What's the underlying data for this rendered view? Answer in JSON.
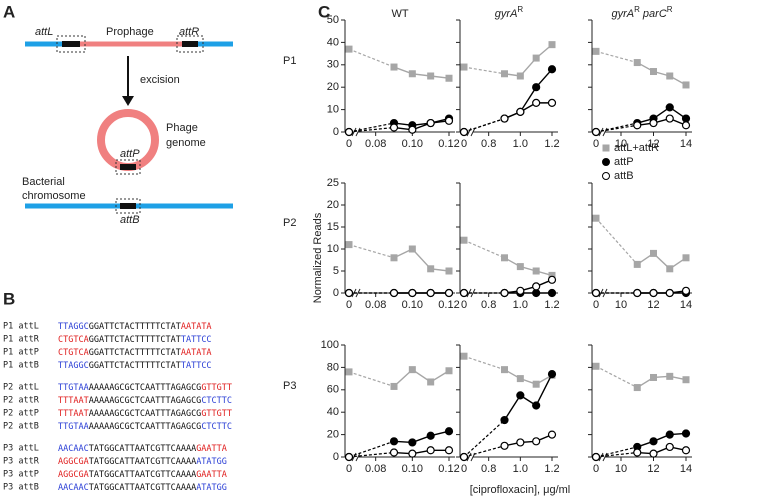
{
  "panel_labels": [
    "A",
    "B",
    "C"
  ],
  "diagram": {
    "attL": "attL",
    "prophage": "Prophage",
    "attR": "attR",
    "excision": "excision",
    "phage": "Phage",
    "genome": "genome",
    "attP": "attP",
    "bacterial": "Bacterial",
    "chromosome": "chromosome",
    "attB": "attB"
  },
  "sequences": [
    {
      "label": "P1 attL",
      "left": "TTAGGC",
      "core": "GGATTCTACTTTTTCTAT",
      "right": "AATATA",
      "left_color": "#2b3fd6",
      "right_color": "#e02020"
    },
    {
      "label": "P1 attR",
      "left": "CTGTCA",
      "core": "GGATTCTACTTTTTCTAT",
      "right": "TATTCC",
      "left_color": "#e02020",
      "right_color": "#2b3fd6"
    },
    {
      "label": "P1 attP",
      "left": "CTGTCA",
      "core": "GGATTCTACTTTTTCTAT",
      "right": "AATATA",
      "left_color": "#e02020",
      "right_color": "#e02020"
    },
    {
      "label": "P1 attB",
      "left": "TTAGGC",
      "core": "GGATTCTACTTTTTCTAT",
      "right": "TATTCC",
      "left_color": "#2b3fd6",
      "right_color": "#2b3fd6"
    },
    {
      "label": "P2 attL",
      "left": "TTGTAA",
      "core": "AAAAAGCGCTCAATTTAGAGCG",
      "right": "GTTGTT",
      "left_color": "#2b3fd6",
      "right_color": "#e02020"
    },
    {
      "label": "P2 attR",
      "left": "TTTAAT",
      "core": "AAAAAGCGCTCAATTTAGAGCG",
      "right": "CTCTTC",
      "left_color": "#e02020",
      "right_color": "#2b3fd6"
    },
    {
      "label": "P2 attP",
      "left": "TTTAAT",
      "core": "AAAAAGCGCTCAATTTAGAGCG",
      "right": "GTTGTT",
      "left_color": "#e02020",
      "right_color": "#e02020"
    },
    {
      "label": "P2 attB",
      "left": "TTGTAA",
      "core": "AAAAAGCGCTCAATTTAGAGCG",
      "right": "CTCTTC",
      "left_color": "#2b3fd6",
      "right_color": "#2b3fd6"
    },
    {
      "label": "P3 attL",
      "left": "AACAAC",
      "core": "TATGGCATTAATCGTTCAAAA",
      "right": "GAATTA",
      "left_color": "#2b3fd6",
      "right_color": "#e02020"
    },
    {
      "label": "P3 attR",
      "left": "AGGCGA",
      "core": "TATGGCATTAATCGTTCAAAA",
      "right": "ATATGG",
      "left_color": "#e02020",
      "right_color": "#2b3fd6"
    },
    {
      "label": "P3 attP",
      "left": "AGGCGA",
      "core": "TATGGCATTAATCGTTCAAAA",
      "right": "GAATTA",
      "left_color": "#e02020",
      "right_color": "#e02020"
    },
    {
      "label": "P3 attB",
      "left": "AACAAC",
      "core": "TATGGCATTAATCGTTCAAAA",
      "right": "ATATGG",
      "left_color": "#2b3fd6",
      "right_color": "#2b3fd6"
    }
  ],
  "column_headers": [
    [
      "WT"
    ],
    [
      "gyrA",
      "R"
    ],
    [
      "gyrA",
      "R",
      " parC",
      "R"
    ]
  ],
  "row_labels": [
    "P1",
    "P2",
    "P3"
  ],
  "y_axis_label": "Normalized Reads",
  "x_axis_label": "[ciprofloxacin], μg/ml",
  "chart_data": [
    {
      "type": "line",
      "x": [
        0,
        0.09,
        0.1,
        0.11,
        0.12
      ],
      "xlim": [
        0,
        0.12
      ],
      "xticks": [
        0,
        0.08,
        {
          "value": 0.1,
          "label": "0.10"
        },
        0.12
      ],
      "ylim": [
        0,
        50
      ],
      "yticks": [
        0,
        10,
        20,
        30,
        40,
        50
      ],
      "ytick_labels": true,
      "series": [
        {
          "name": "attL+attR",
          "color": "#a6a6a6",
          "marker": "square",
          "values": [
            37,
            29,
            26,
            25,
            24
          ]
        },
        {
          "name": "attP",
          "color": "#000000",
          "marker": "circle",
          "values": [
            0,
            4,
            3,
            4,
            6
          ]
        },
        {
          "name": "attB",
          "color": "#000000",
          "marker": "open-circle",
          "values": [
            0,
            2,
            1,
            4,
            5
          ]
        }
      ]
    },
    {
      "type": "line",
      "x": [
        0,
        0.9,
        1,
        1.1,
        1.2
      ],
      "xlim": [
        0,
        1.2
      ],
      "xticks": [
        0,
        0.8,
        {
          "value": 1,
          "label": "1.0"
        },
        1.2
      ],
      "ylim": [
        0,
        50
      ],
      "yticks": [
        0,
        10,
        20,
        30,
        40,
        50
      ],
      "ytick_labels": false,
      "series": [
        {
          "name": "attL+attR",
          "color": "#a6a6a6",
          "marker": "square",
          "values": [
            29,
            26,
            25,
            33,
            39
          ]
        },
        {
          "name": "attP",
          "color": "#000000",
          "marker": "circle",
          "values": [
            0,
            6,
            9,
            20,
            28
          ]
        },
        {
          "name": "attB",
          "color": "#000000",
          "marker": "open-circle",
          "values": [
            0,
            6,
            9,
            13,
            13
          ]
        }
      ]
    },
    {
      "type": "line",
      "x": [
        0,
        11,
        12,
        13,
        14
      ],
      "xlim": [
        0,
        14
      ],
      "xticks": [
        0,
        10,
        12,
        14
      ],
      "ylim": [
        0,
        50
      ],
      "yticks": [
        0,
        10,
        20,
        30,
        40,
        50
      ],
      "ytick_labels": false,
      "legend": true,
      "series": [
        {
          "name": "attL+attR",
          "color": "#a6a6a6",
          "marker": "square",
          "values": [
            36,
            31,
            27,
            25,
            21
          ]
        },
        {
          "name": "attP",
          "color": "#000000",
          "marker": "circle",
          "values": [
            0,
            4,
            6,
            11,
            6
          ]
        },
        {
          "name": "attB",
          "color": "#000000",
          "marker": "open-circle",
          "values": [
            0,
            3,
            4,
            6,
            3
          ]
        }
      ]
    },
    {
      "type": "line",
      "x": [
        0,
        0.09,
        0.1,
        0.11,
        0.12
      ],
      "xlim": [
        0,
        0.12
      ],
      "xticks": [
        0,
        0.08,
        {
          "value": 0.1,
          "label": "0.10"
        },
        0.12
      ],
      "ylim": [
        0,
        25
      ],
      "yticks": [
        0,
        5,
        10,
        15,
        20,
        25
      ],
      "ytick_labels": true,
      "series": [
        {
          "name": "attL+attR",
          "color": "#a6a6a6",
          "marker": "square",
          "values": [
            11,
            8,
            10,
            5.5,
            5
          ]
        },
        {
          "name": "attP",
          "color": "#000000",
          "marker": "circle",
          "values": [
            0,
            0,
            0,
            0,
            0
          ]
        },
        {
          "name": "attB",
          "color": "#000000",
          "marker": "open-circle",
          "values": [
            0,
            0,
            0,
            0,
            0
          ]
        }
      ]
    },
    {
      "type": "line",
      "x": [
        0,
        0.9,
        1,
        1.1,
        1.2
      ],
      "xlim": [
        0,
        1.2
      ],
      "xticks": [
        0,
        0.8,
        {
          "value": 1,
          "label": "1.0"
        },
        1.2
      ],
      "ylim": [
        0,
        25
      ],
      "yticks": [
        0,
        5,
        10,
        15,
        20,
        25
      ],
      "ytick_labels": false,
      "series": [
        {
          "name": "attL+attR",
          "color": "#a6a6a6",
          "marker": "square",
          "values": [
            12,
            8,
            6,
            5,
            4
          ]
        },
        {
          "name": "attP",
          "color": "#000000",
          "marker": "circle",
          "values": [
            0,
            0,
            0,
            0,
            0
          ]
        },
        {
          "name": "attB",
          "color": "#000000",
          "marker": "open-circle",
          "values": [
            0,
            0,
            0.5,
            1.5,
            3
          ]
        }
      ]
    },
    {
      "type": "line",
      "x": [
        0,
        11,
        12,
        13,
        14
      ],
      "xlim": [
        0,
        14
      ],
      "xticks": [
        0,
        10,
        12,
        14
      ],
      "ylim": [
        0,
        25
      ],
      "yticks": [
        0,
        5,
        10,
        15,
        20,
        25
      ],
      "ytick_labels": false,
      "series": [
        {
          "name": "attL+attR",
          "color": "#a6a6a6",
          "marker": "square",
          "values": [
            17,
            6.5,
            9,
            5.5,
            8
          ]
        },
        {
          "name": "attP",
          "color": "#000000",
          "marker": "circle",
          "values": [
            0,
            0,
            0,
            0,
            0
          ]
        },
        {
          "name": "attB",
          "color": "#000000",
          "marker": "open-circle",
          "values": [
            0,
            0,
            0,
            0,
            0.5
          ]
        }
      ]
    },
    {
      "type": "line",
      "x": [
        0,
        0.09,
        0.1,
        0.11,
        0.12
      ],
      "xlim": [
        0,
        0.12
      ],
      "xticks": [
        0,
        0.08,
        {
          "value": 0.1,
          "label": "0.10"
        },
        0.12
      ],
      "ylim": [
        0,
        100
      ],
      "yticks": [
        0,
        20,
        40,
        60,
        80,
        100
      ],
      "ytick_labels": true,
      "series": [
        {
          "name": "attL+attR",
          "color": "#a6a6a6",
          "marker": "square",
          "values": [
            76,
            63,
            78,
            67,
            77
          ]
        },
        {
          "name": "attP",
          "color": "#000000",
          "marker": "circle",
          "values": [
            0,
            14,
            13,
            19,
            23
          ]
        },
        {
          "name": "attB",
          "color": "#000000",
          "marker": "open-circle",
          "values": [
            0,
            4,
            3,
            6,
            6
          ]
        }
      ]
    },
    {
      "type": "line",
      "x": [
        0,
        0.9,
        1,
        1.1,
        1.2
      ],
      "xlim": [
        0,
        1.2
      ],
      "xticks": [
        0,
        0.8,
        {
          "value": 1,
          "label": "1.0"
        },
        1.2
      ],
      "ylim": [
        0,
        100
      ],
      "yticks": [
        0,
        20,
        40,
        60,
        80,
        100
      ],
      "ytick_labels": false,
      "series": [
        {
          "name": "attL+attR",
          "color": "#a6a6a6",
          "marker": "square",
          "values": [
            90,
            78,
            70,
            65,
            73
          ]
        },
        {
          "name": "attP",
          "color": "#000000",
          "marker": "circle",
          "values": [
            0,
            33,
            55,
            46,
            74
          ]
        },
        {
          "name": "attB",
          "color": "#000000",
          "marker": "open-circle",
          "values": [
            0,
            10,
            13,
            14,
            20
          ]
        }
      ]
    },
    {
      "type": "line",
      "x": [
        0,
        11,
        12,
        13,
        14
      ],
      "xlim": [
        0,
        14
      ],
      "xticks": [
        0,
        10,
        12,
        14
      ],
      "ylim": [
        0,
        100
      ],
      "yticks": [
        0,
        20,
        40,
        60,
        80,
        100
      ],
      "ytick_labels": false,
      "series": [
        {
          "name": "attL+attR",
          "color": "#a6a6a6",
          "marker": "square",
          "values": [
            81,
            62,
            71,
            72,
            69
          ]
        },
        {
          "name": "attP",
          "color": "#000000",
          "marker": "circle",
          "values": [
            0,
            9,
            14,
            20,
            21
          ]
        },
        {
          "name": "attB",
          "color": "#000000",
          "marker": "open-circle",
          "values": [
            0,
            4,
            3,
            9,
            6
          ]
        }
      ]
    }
  ]
}
